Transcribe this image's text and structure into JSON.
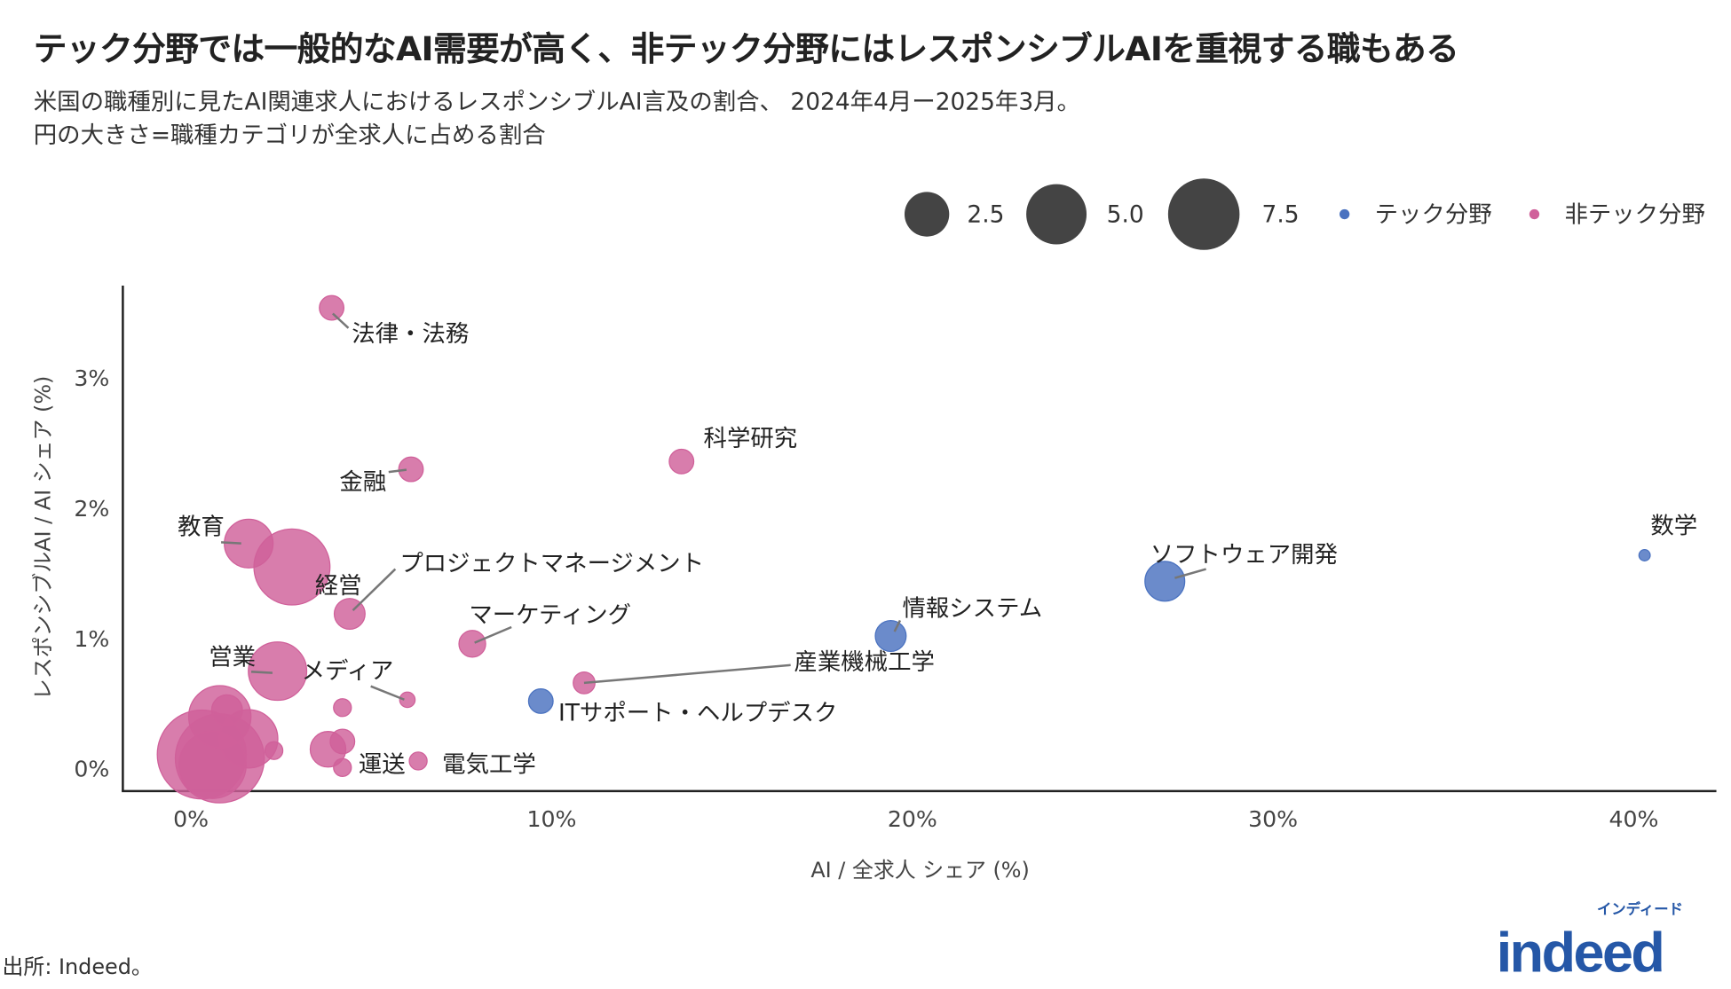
{
  "title": "テック分野では一般的なAI需要が高く、非テック分野にはレスポンシブルAIを重視する職もある",
  "subtitle_line1": "米国の職種別に見たAI関連求人におけるレスポンシブルAI言及の割合、 2024年4月ー2025年3月。",
  "subtitle_line2": "円の大きさ=職種カテゴリが全求人に占める割合",
  "footnote": "出所: Indeed。",
  "logo": {
    "main": "indeed",
    "small": "インディード",
    "color": "#2557a7"
  },
  "chart_data": {
    "type": "scatter",
    "xlabel": "AI / 全求人 シェア (%)",
    "ylabel": "レスポンシブルAI / AI シェア (%)",
    "xlim": [
      -0.5,
      42
    ],
    "ylim": [
      -0.18,
      3.9
    ],
    "x_ticks": [
      "0%",
      "10%",
      "20%",
      "30%",
      "40%"
    ],
    "x_tick_values": [
      0,
      10,
      20,
      30,
      40
    ],
    "y_ticks": [
      "0%",
      "1%",
      "2%",
      "3%"
    ],
    "y_tick_values": [
      0,
      1,
      2,
      3
    ],
    "grid": false,
    "legend_position": "top-right",
    "size_legend": {
      "values": [
        2.5,
        5.0,
        7.5
      ],
      "labels": [
        "2.5",
        "5.0",
        "7.5"
      ],
      "color": "#444444"
    },
    "categories": [
      {
        "name": "テック分野",
        "color": "#4a72c0"
      },
      {
        "name": "非テック分野",
        "color": "#d0609a"
      }
    ],
    "points": [
      {
        "label": "法律・法務",
        "x": 3.9,
        "y": 3.54,
        "size": 0.76,
        "category": "非テック分野"
      },
      {
        "label": "金融",
        "x": 6.1,
        "y": 2.3,
        "size": 0.76,
        "category": "非テック分野"
      },
      {
        "label": "科学研究",
        "x": 13.6,
        "y": 2.36,
        "size": 0.76,
        "category": "非テック分野"
      },
      {
        "label": "教育",
        "x": 1.6,
        "y": 1.73,
        "size": 3.0,
        "category": "非テック分野"
      },
      {
        "label": "プロジェクトマネージメント",
        "x": 2.8,
        "y": 1.55,
        "size": 7.3,
        "category": "非テック分野"
      },
      {
        "label": "経営",
        "x": 4.4,
        "y": 1.19,
        "size": 1.2,
        "category": "非テック分野"
      },
      {
        "label": "マーケティング",
        "x": 7.8,
        "y": 0.96,
        "size": 0.9,
        "category": "非テック分野"
      },
      {
        "label": "営業",
        "x": 2.4,
        "y": 0.75,
        "size": 4.3,
        "category": "非テック分野"
      },
      {
        "label": "メディア",
        "x": 6.0,
        "y": 0.53,
        "size": 0.3,
        "category": "非テック分野"
      },
      {
        "label": "産業機械工学",
        "x": 10.9,
        "y": 0.66,
        "size": 0.6,
        "category": "非テック分野"
      },
      {
        "label": "ITサポート・ヘルプデスク",
        "x": 9.7,
        "y": 0.52,
        "size": 0.76,
        "category": "テック分野"
      },
      {
        "label": "情報システム",
        "x": 19.4,
        "y": 1.02,
        "size": 1.2,
        "category": "テック分野"
      },
      {
        "label": "ソフトウェア開発",
        "x": 27.0,
        "y": 1.44,
        "size": 2.0,
        "category": "テック分野"
      },
      {
        "label": "数学",
        "x": 40.3,
        "y": 1.64,
        "size": 0.16,
        "category": "テック分野"
      },
      {
        "label": "運送",
        "x": 4.2,
        "y": 0.01,
        "size": 0.4,
        "category": "非テック分野"
      },
      {
        "label": "電気工学",
        "x": 6.3,
        "y": 0.06,
        "size": 0.4,
        "category": "非テック分野"
      },
      {
        "label": "",
        "x": 4.2,
        "y": 0.47,
        "size": 0.4,
        "category": "非テック分野"
      },
      {
        "label": "",
        "x": 3.8,
        "y": 0.15,
        "size": 1.6,
        "category": "非テック分野"
      },
      {
        "label": "",
        "x": 4.2,
        "y": 0.21,
        "size": 0.76,
        "category": "非テック分野"
      },
      {
        "label": "",
        "x": 2.3,
        "y": 0.14,
        "size": 0.4,
        "category": "非テック分野"
      },
      {
        "label": "",
        "x": 0.8,
        "y": 0.4,
        "size": 4.9,
        "category": "非テック分野"
      },
      {
        "label": "",
        "x": 1.0,
        "y": 0.45,
        "size": 1.2,
        "category": "非テック分野"
      },
      {
        "label": "",
        "x": 1.6,
        "y": 0.23,
        "size": 4.3,
        "category": "非テック分野"
      },
      {
        "label": "",
        "x": 0.3,
        "y": 0.11,
        "size": 10.0,
        "category": "非テック分野"
      },
      {
        "label": "",
        "x": 0.8,
        "y": 0.08,
        "size": 10.0,
        "category": "非テック分野"
      },
      {
        "label": "",
        "x": 0.6,
        "y": 0.03,
        "size": 5.7,
        "category": "非テック分野"
      }
    ]
  }
}
